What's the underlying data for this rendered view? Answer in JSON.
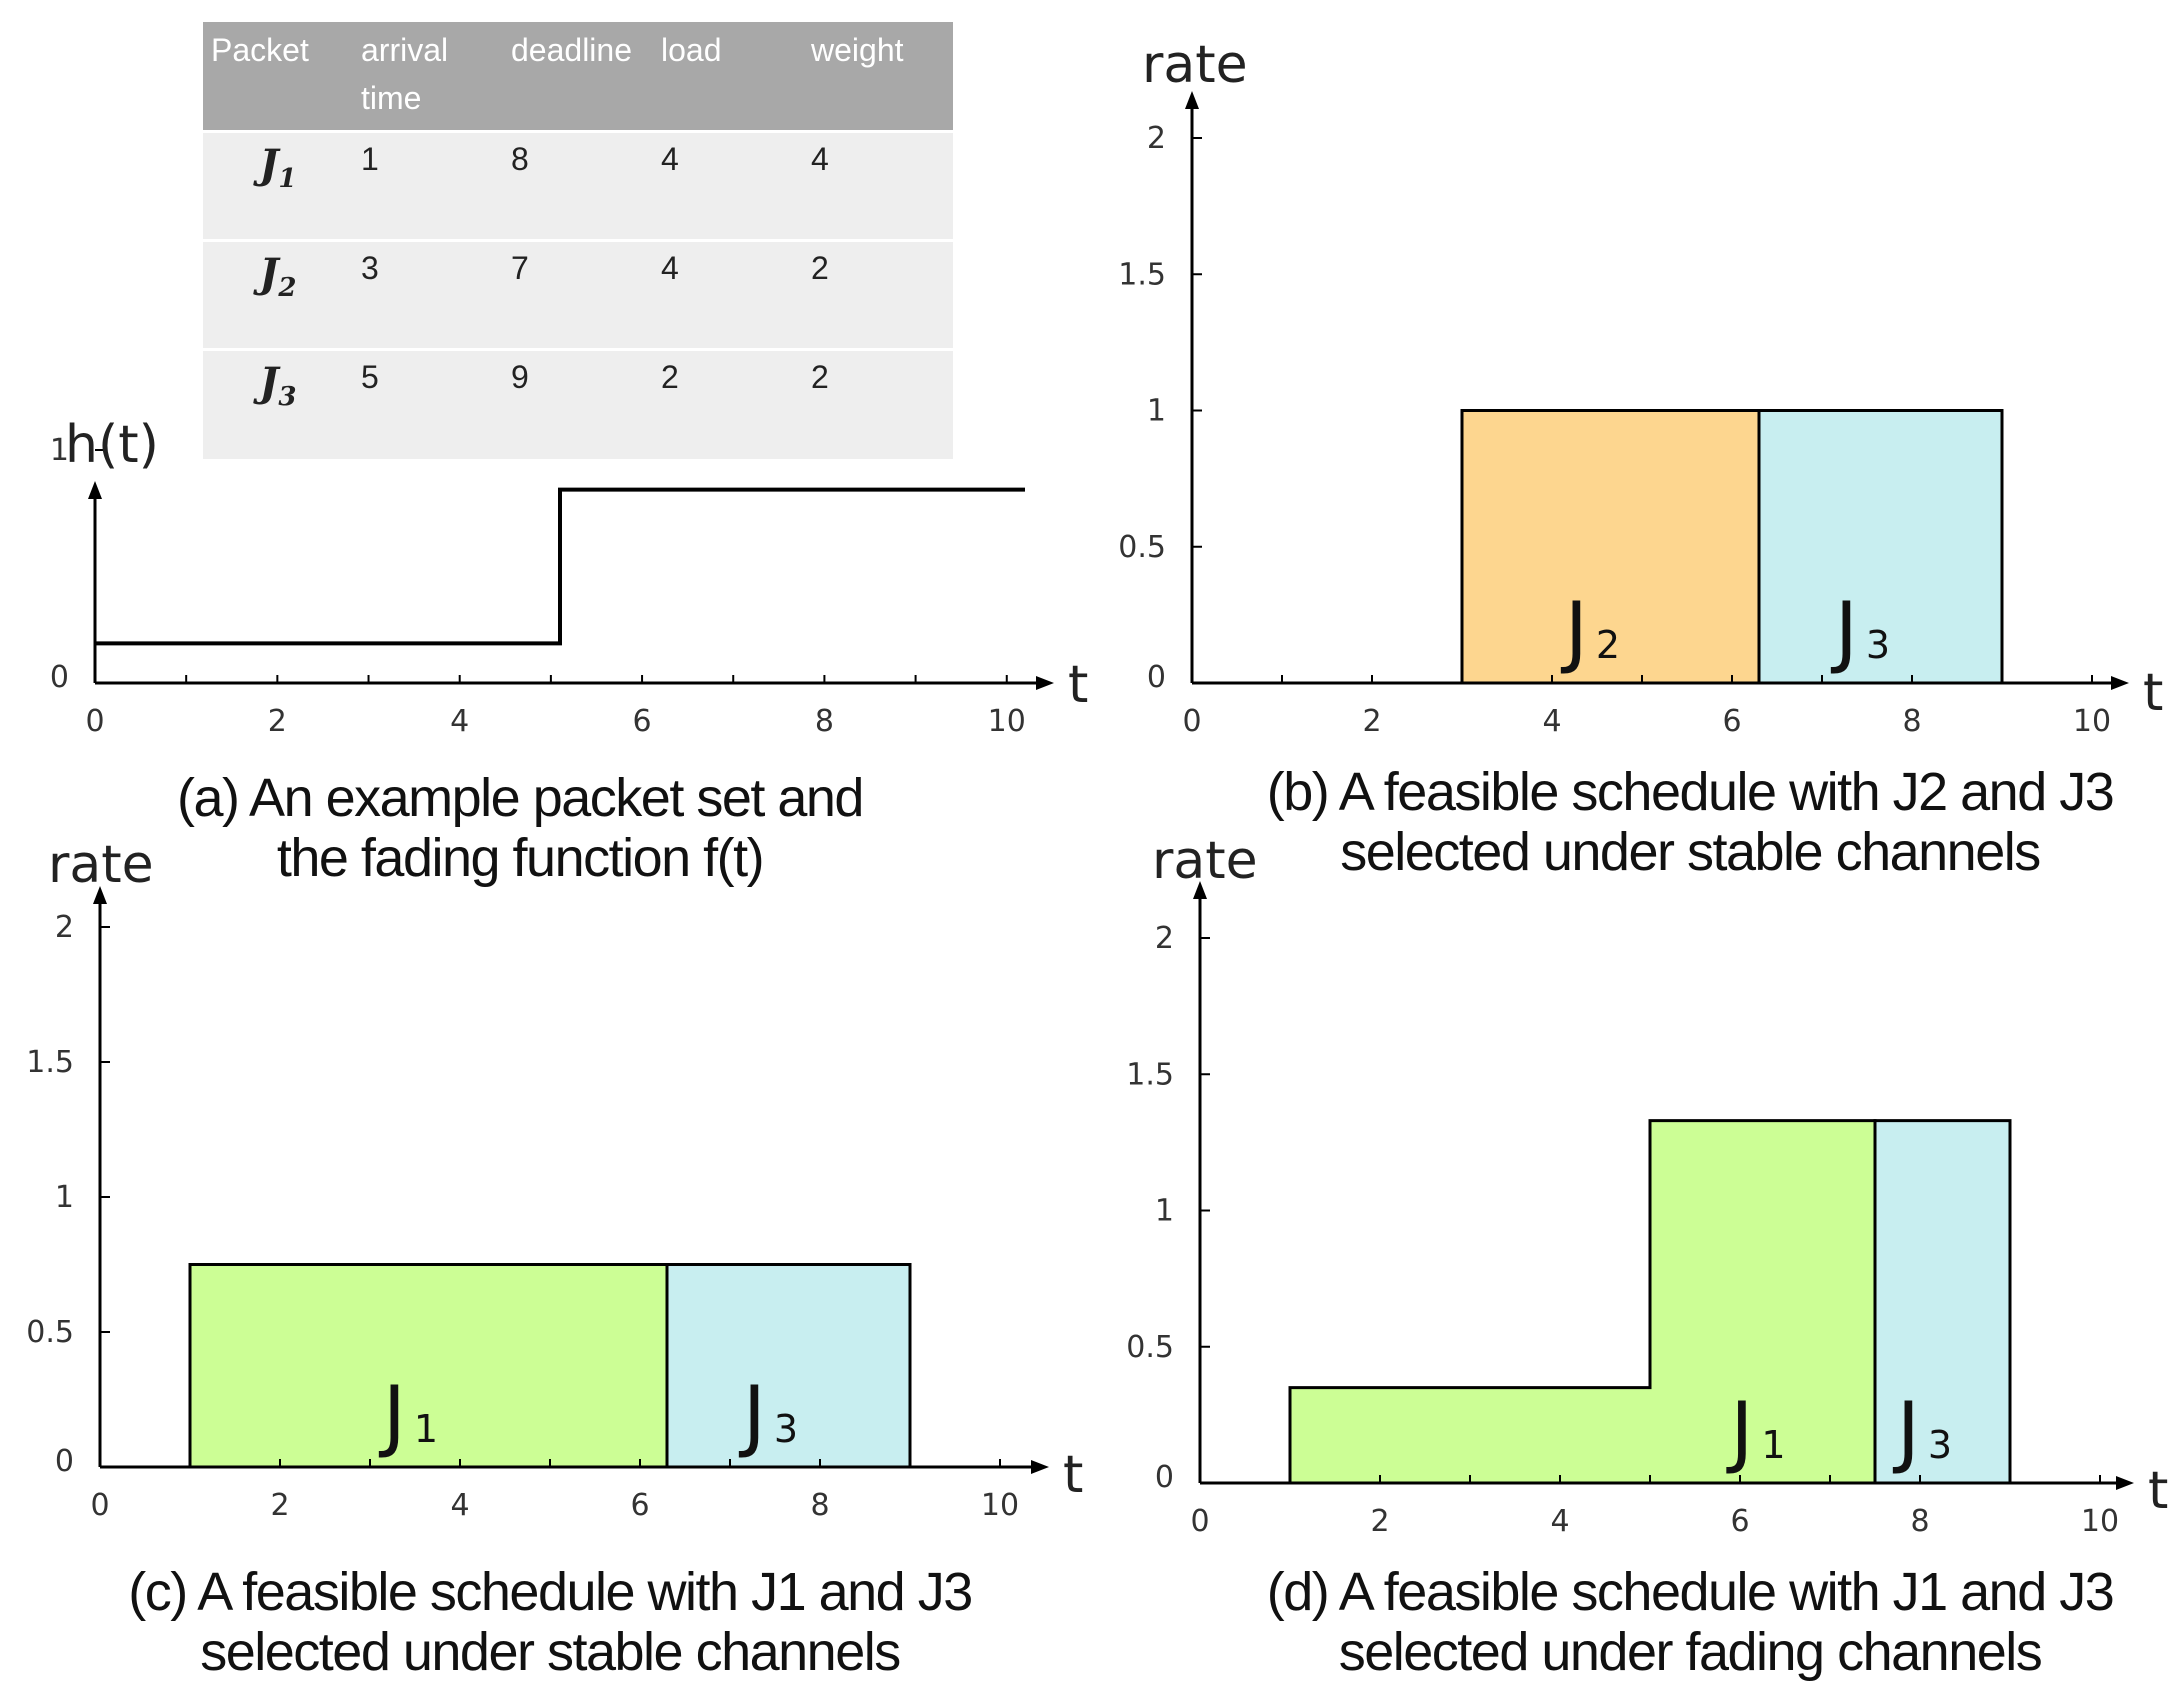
{
  "packet_table": {
    "headers": [
      "Packet",
      "arrival time",
      "deadline",
      "load",
      "weight"
    ],
    "rows": [
      {
        "name": "J",
        "sub": "1",
        "arrival": "1",
        "deadline": "8",
        "load": "4",
        "weight": "4"
      },
      {
        "name": "J",
        "sub": "2",
        "arrival": "3",
        "deadline": "7",
        "load": "4",
        "weight": "2"
      },
      {
        "name": "J",
        "sub": "3",
        "arrival": "5",
        "deadline": "9",
        "load": "2",
        "weight": "2"
      }
    ]
  },
  "captions": {
    "a": [
      "(a) An example packet set and",
      "the fading function f(t)"
    ],
    "b": [
      "(b) A feasible schedule with J2 and J3",
      "selected under stable channels"
    ],
    "c": [
      "(c) A feasible schedule with J1 and J3",
      "selected under stable channels"
    ],
    "d": [
      "(d) A feasible schedule with J1 and J3",
      "selected under fading channels"
    ]
  },
  "chart_data": [
    {
      "id": "a",
      "type": "line",
      "ylabel": "h(t)",
      "xlabel": "t",
      "xlim": [
        0,
        10.2
      ],
      "ylim": [
        0,
        1
      ],
      "xticks": [
        "0",
        "2",
        "4",
        "6",
        "8",
        "10"
      ],
      "yticks": [
        "0",
        "1"
      ],
      "series": [
        {
          "x": [
            0,
            5.1,
            5.1,
            10.2
          ],
          "y": [
            0.17,
            0.17,
            0.83,
            0.83
          ]
        }
      ]
    },
    {
      "id": "b",
      "type": "bar",
      "ylabel": "rate",
      "xlabel": "t",
      "xlim": [
        0,
        10
      ],
      "ylim": [
        0,
        2
      ],
      "xticks": [
        "0",
        "2",
        "4",
        "6",
        "8",
        "10"
      ],
      "yticks": [
        "0",
        "0.5",
        "1",
        "1.5",
        "2"
      ],
      "blocks": [
        {
          "label": "J",
          "sub": "2",
          "x0": 3,
          "x1": 6.3,
          "y": 1,
          "color": "#fdd68f"
        },
        {
          "label": "J",
          "sub": "3",
          "x0": 6.3,
          "x1": 9,
          "y": 1,
          "color": "#c8eef0"
        }
      ]
    },
    {
      "id": "c",
      "type": "bar",
      "ylabel": "rate",
      "xlabel": "t",
      "xlim": [
        0,
        10
      ],
      "ylim": [
        0,
        2
      ],
      "xticks": [
        "0",
        "2",
        "4",
        "6",
        "8",
        "10"
      ],
      "yticks": [
        "0",
        "0.5",
        "1",
        "1.5",
        "2"
      ],
      "blocks": [
        {
          "label": "J",
          "sub": "1",
          "x0": 1,
          "x1": 6.3,
          "y": 0.75,
          "color": "#ccfe95"
        },
        {
          "label": "J",
          "sub": "3",
          "x0": 6.3,
          "x1": 9,
          "y": 0.75,
          "color": "#c8eef0"
        }
      ]
    },
    {
      "id": "d",
      "type": "bar",
      "ylabel": "rate",
      "xlabel": "t",
      "xlim": [
        0,
        10
      ],
      "ylim": [
        0,
        2
      ],
      "xticks": [
        "0",
        "2",
        "4",
        "6",
        "8",
        "10"
      ],
      "yticks": [
        "0",
        "0.5",
        "1",
        "1.5",
        "2"
      ],
      "blocks": [
        {
          "label": "J",
          "sub": "1",
          "steps": [
            [
              1,
              5.0,
              0.35
            ],
            [
              5.0,
              7.5,
              1.33
            ]
          ],
          "color": "#ccfe95"
        },
        {
          "label": "J",
          "sub": "3",
          "x0": 7.5,
          "x1": 9,
          "y": 1.33,
          "color": "#c8eef0"
        }
      ]
    }
  ]
}
